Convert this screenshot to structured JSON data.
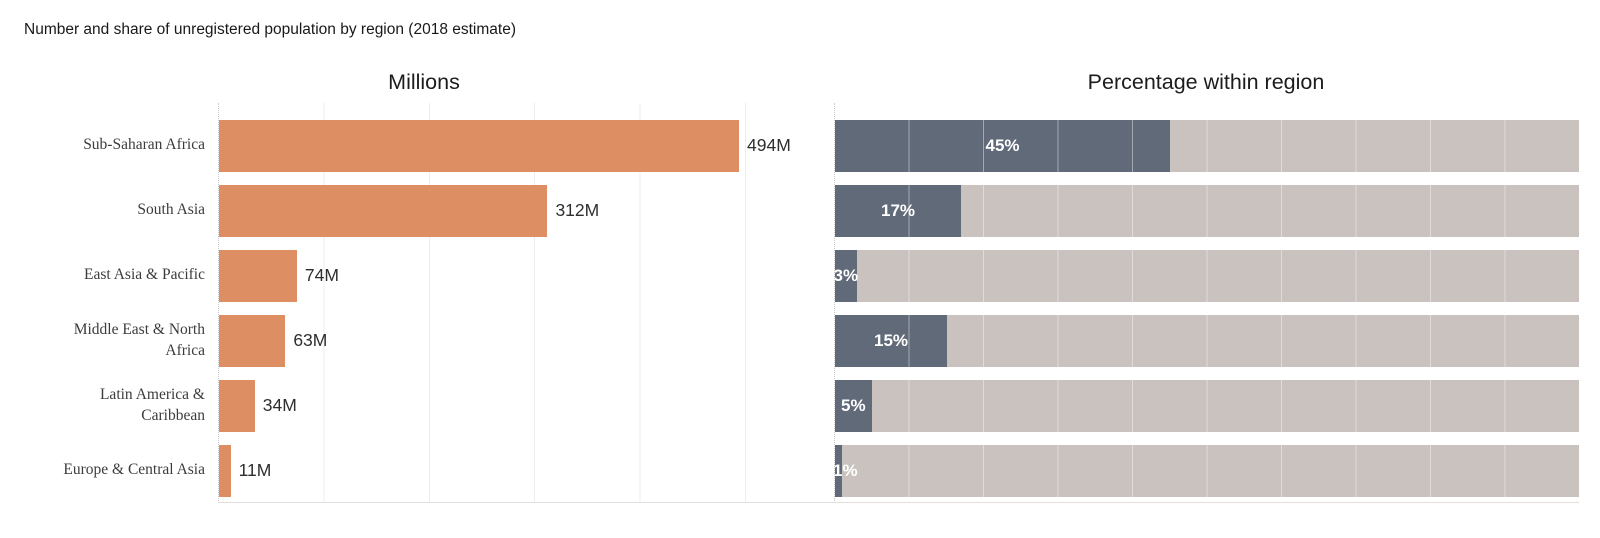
{
  "page": {
    "title": "Number and share of unregistered population by region (2018 estimate)"
  },
  "chart_data": {
    "type": "bar",
    "orientation": "horizontal",
    "title": "Number and share of unregistered population by region (2018 estimate)",
    "grid": true,
    "legend": false,
    "categories": [
      "Sub-Saharan Africa",
      "South Asia",
      "East Asia & Pacific",
      "Middle East & North Africa",
      "Latin America & Caribbean",
      "Europe & Central Asia"
    ],
    "panels": [
      {
        "title": "Millions",
        "unit": "M",
        "axis_min": 0,
        "axis_max": 512,
        "grid_interval_value": 100
      },
      {
        "title": "Percentage within region",
        "unit": "%",
        "axis_min": 0,
        "axis_max": 100,
        "grid_interval_value": 10
      }
    ],
    "series": [
      {
        "name": "Millions",
        "axis_max": 512,
        "values": [
          494,
          312,
          74,
          63,
          34,
          11
        ],
        "labels": [
          "494M",
          "312M",
          "74M",
          "63M",
          "34M",
          "11M"
        ],
        "bar_color": "#dd8e63",
        "label_color": "#2e2e2e"
      },
      {
        "name": "Percentage within region",
        "axis_max": 100,
        "values": [
          45,
          17,
          3,
          15,
          5,
          1
        ],
        "labels": [
          "45%",
          "17%",
          "3%",
          "15%",
          "5%",
          "1%"
        ],
        "bar_color": "#606a78",
        "track_color": "#c9c2be",
        "label_color": "#ffffff"
      }
    ],
    "colors": {
      "millions_bar": "#dd8e63",
      "percent_bar": "#606a78",
      "percent_track": "#c9c2be",
      "gridline": "#ededed",
      "axis_dotted_line": "#c9c9c9",
      "baseline": "#e2dfdd"
    }
  }
}
